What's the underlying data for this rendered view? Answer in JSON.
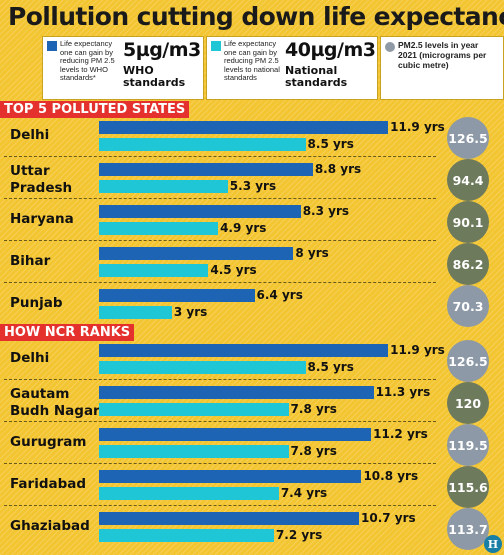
{
  "title": "Pollution cutting down life expectancy",
  "legend": {
    "who": {
      "description": "Life expectancy one can gain by reducing PM 2.5 levels to WHO standards*",
      "value": "5µg/m3",
      "standard": "WHO standards",
      "color": "#1e64b4"
    },
    "national": {
      "description": "Life expectancy one can gain by reducing PM 2.5 levels to national standards",
      "value": "40µg/m3",
      "standard": "National standards",
      "color": "#1fc7d6"
    },
    "pm": {
      "description": "PM2.5 levels in year 2021 (micrograms per cubic metre)",
      "color": "#8f9aa6"
    }
  },
  "sections": [
    {
      "label": "TOP 5 POLLUTED STATES"
    },
    {
      "label": "HOW NCR RANKS"
    }
  ],
  "chart_data": {
    "type": "bar",
    "title": "Pollution cutting down life expectancy",
    "value_suffix": " yrs",
    "xlim": [
      0,
      12
    ],
    "series": [
      {
        "name": "WHO standards",
        "color": "#1e64b4"
      },
      {
        "name": "National standards",
        "color": "#1fc7d6"
      },
      {
        "name": "PM2.5 levels in year 2021"
      }
    ],
    "groups": [
      {
        "name": "TOP 5 POLLUTED STATES",
        "rows": [
          {
            "label": "Delhi",
            "who": 11.9,
            "national": 8.5,
            "pm": 126.5,
            "pm_color": "#8d99a6"
          },
          {
            "label": "Uttar\nPradesh",
            "who": 8.8,
            "national": 5.3,
            "pm": 94.4,
            "pm_color": "#6e7a5c"
          },
          {
            "label": "Haryana",
            "who": 8.3,
            "national": 4.9,
            "pm": 90.1,
            "pm_color": "#6e7a5c"
          },
          {
            "label": "Bihar",
            "who": 8,
            "national": 4.5,
            "pm": 86.2,
            "pm_color": "#6e7a5c"
          },
          {
            "label": "Punjab",
            "who": 6.4,
            "national": 3,
            "pm": 70.3,
            "pm_color": "#8d99a6"
          }
        ]
      },
      {
        "name": "HOW NCR RANKS",
        "rows": [
          {
            "label": "Delhi",
            "who": 11.9,
            "national": 8.5,
            "pm": 126.5,
            "pm_color": "#8d99a6"
          },
          {
            "label": "Gautam\nBudh Nagar",
            "who": 11.3,
            "national": 7.8,
            "pm": 120,
            "pm_color": "#6e7a5c"
          },
          {
            "label": "Gurugram",
            "who": 11.2,
            "national": 7.8,
            "pm": 119.5,
            "pm_color": "#8d99a6"
          },
          {
            "label": "Faridabad",
            "who": 10.8,
            "national": 7.4,
            "pm": 115.6,
            "pm_color": "#6e7a5c"
          },
          {
            "label": "Ghaziabad",
            "who": 10.7,
            "national": 7.2,
            "pm": 113.7,
            "pm_color": "#8d99a6"
          }
        ]
      }
    ]
  },
  "logo_text": "H"
}
